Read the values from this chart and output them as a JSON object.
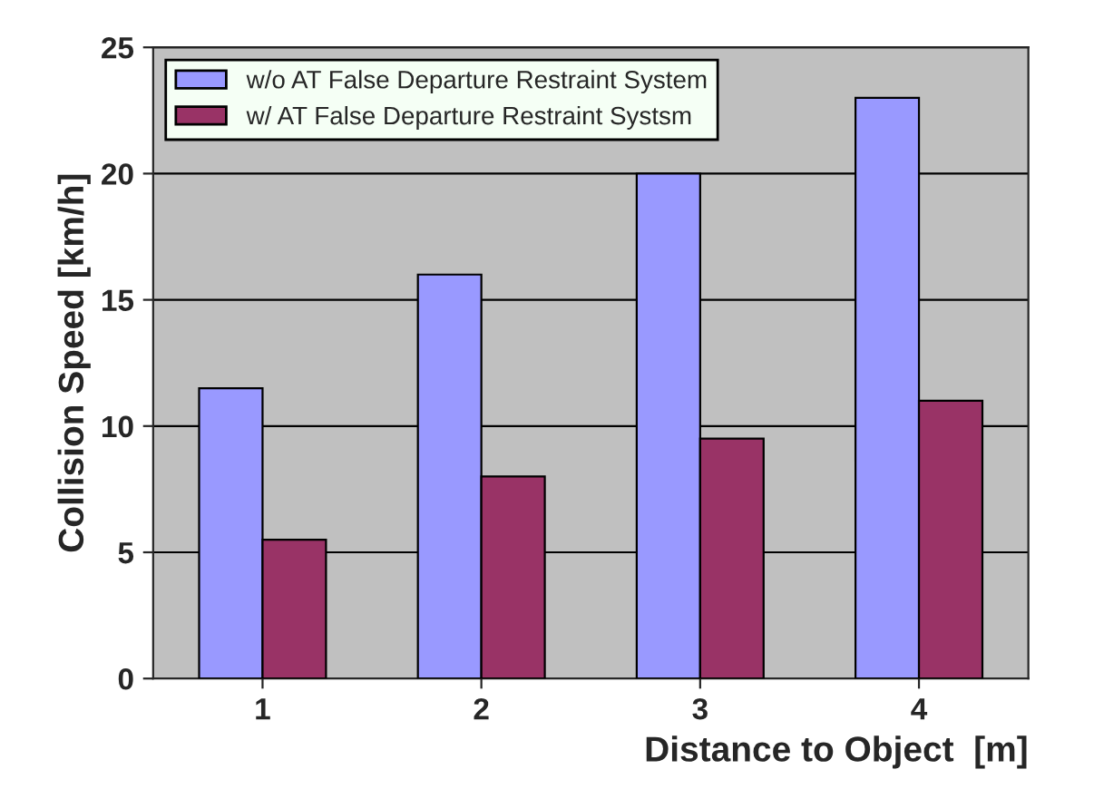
{
  "chart_data": {
    "type": "bar",
    "xlabel": "Distance to Object  [m]",
    "ylabel": "Collision Speed [km/h]",
    "categories": [
      "1",
      "2",
      "3",
      "4"
    ],
    "series": [
      {
        "name": "w/o AT False Departure Restraint System",
        "color": "#9999ff",
        "values": [
          11.5,
          16.0,
          20.0,
          23.0
        ]
      },
      {
        "name": "w/ AT False Departure Restraint Systsm",
        "color": "#993366",
        "values": [
          5.5,
          8.0,
          9.5,
          11.0
        ]
      }
    ],
    "ylim": [
      0,
      25
    ],
    "yticks": [
      0,
      5,
      10,
      15,
      20,
      25
    ],
    "grid": "y",
    "legend": "top left"
  }
}
